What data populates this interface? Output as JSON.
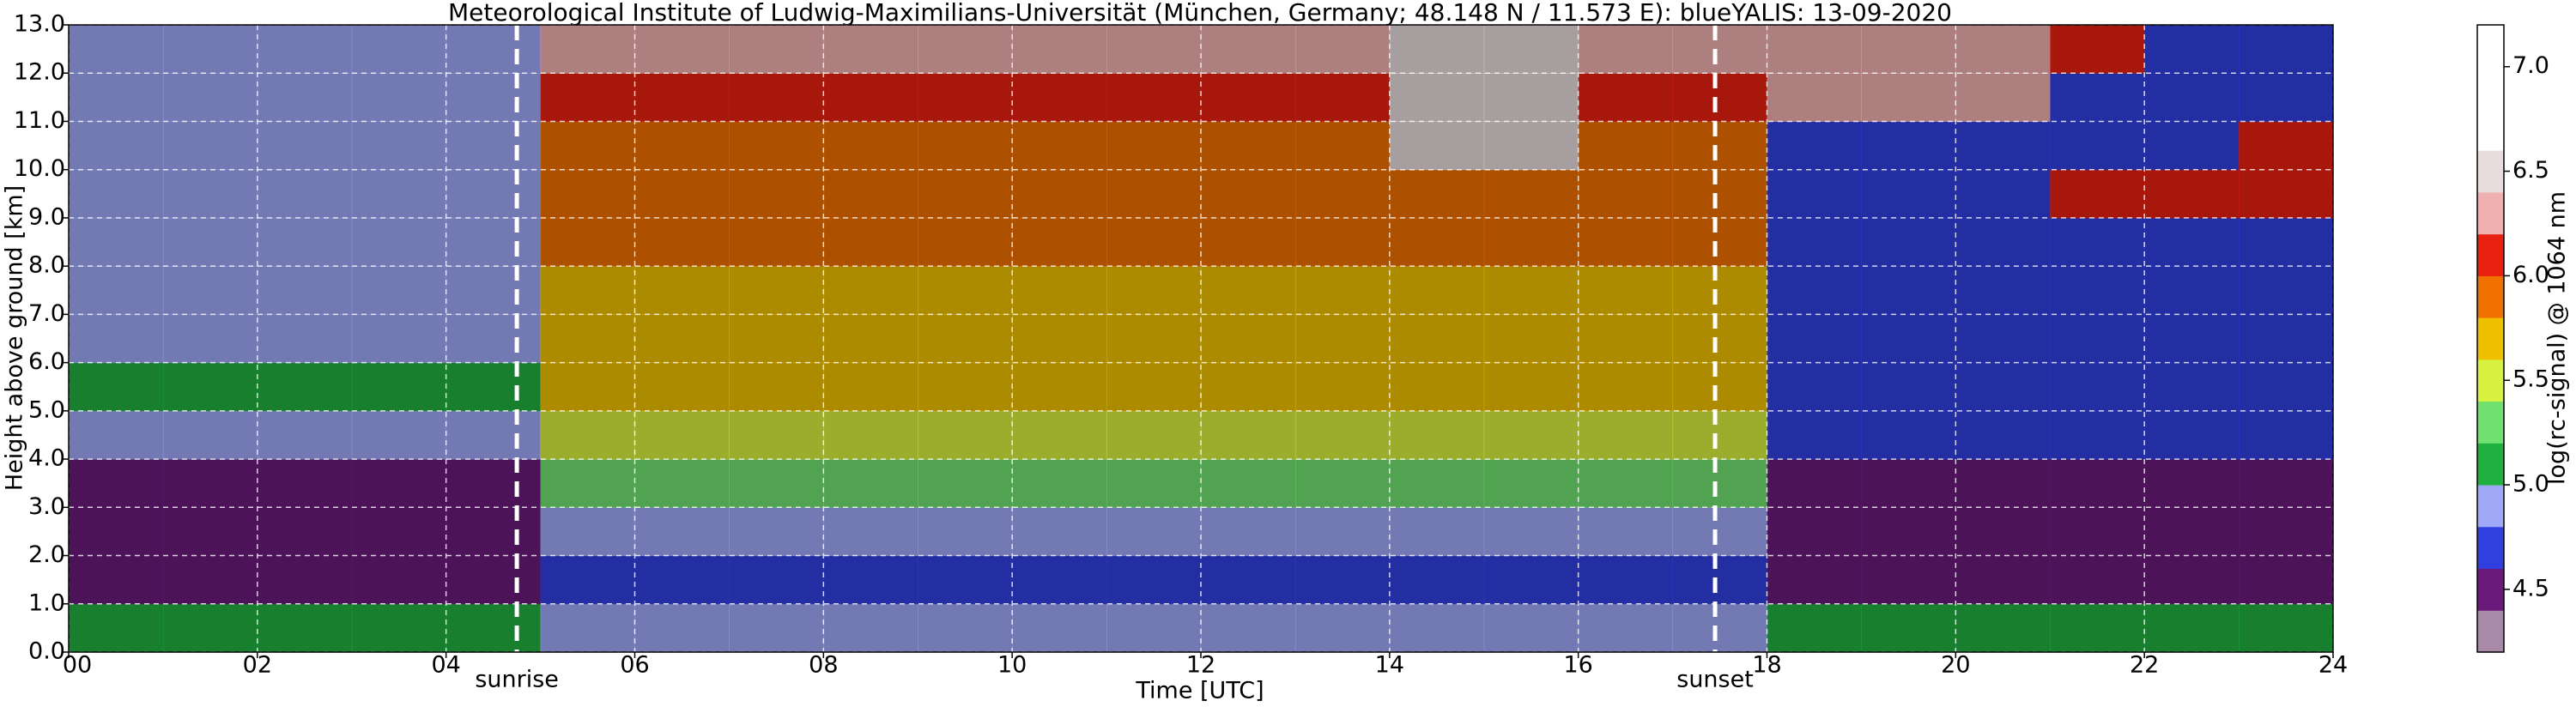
{
  "chart_data": {
    "type": "heatmap",
    "title": "Meteorological Institute of Ludwig-Maximilians-Universität (München, Germany; 48.148 N / 11.573 E):    blueYALIS: 13-09-2020",
    "xlabel": "Time [UTC]",
    "ylabel": "Height above ground [km]",
    "colorbar_label": "log(rc-signal) @ 1064 nm",
    "x_bins": [
      0,
      1,
      2,
      3,
      4,
      5,
      6,
      7,
      8,
      9,
      10,
      11,
      12,
      13,
      14,
      15,
      16,
      17,
      18,
      19,
      20,
      21,
      22,
      23,
      24
    ],
    "y_bins": [
      0,
      1,
      2,
      3,
      4,
      5,
      6,
      7,
      8,
      9,
      10,
      11,
      12,
      13
    ],
    "z": [
      [
        5.1,
        5.1,
        5.1,
        5.1,
        5.1,
        4.9,
        4.9,
        4.9,
        4.9,
        4.9,
        4.9,
        4.9,
        4.9,
        4.9,
        4.9,
        4.9,
        4.9,
        4.9,
        5.1,
        5.1,
        5.1,
        5.1,
        5.1,
        5.1
      ],
      [
        4.6,
        4.6,
        4.6,
        4.6,
        4.6,
        4.7,
        4.7,
        4.7,
        4.7,
        4.7,
        4.7,
        4.7,
        4.7,
        4.7,
        4.7,
        4.7,
        4.7,
        4.7,
        4.6,
        4.6,
        4.6,
        4.6,
        4.6,
        4.6
      ],
      [
        4.5,
        4.5,
        4.5,
        4.5,
        4.5,
        4.9,
        4.9,
        4.9,
        4.9,
        4.9,
        4.9,
        4.9,
        4.9,
        4.9,
        4.9,
        4.9,
        4.9,
        4.9,
        4.6,
        4.6,
        4.6,
        4.6,
        4.6,
        4.6
      ],
      [
        4.6,
        4.6,
        4.6,
        4.6,
        4.6,
        5.3,
        5.3,
        5.3,
        5.3,
        5.3,
        5.3,
        5.3,
        5.3,
        5.3,
        5.3,
        5.3,
        5.3,
        5.3,
        4.6,
        4.6,
        4.6,
        4.6,
        4.6,
        4.6
      ],
      [
        5.0,
        5.0,
        5.0,
        5.0,
        5.0,
        5.5,
        5.5,
        5.5,
        5.5,
        5.5,
        5.5,
        5.5,
        5.5,
        5.5,
        5.5,
        5.5,
        5.5,
        5.5,
        4.7,
        4.7,
        4.7,
        4.7,
        4.7,
        4.7
      ],
      [
        5.1,
        5.1,
        5.1,
        5.1,
        5.1,
        5.7,
        5.7,
        5.7,
        5.7,
        5.7,
        5.7,
        5.7,
        5.7,
        5.7,
        5.7,
        5.7,
        5.7,
        5.7,
        4.8,
        4.8,
        4.8,
        4.8,
        4.8,
        4.8
      ],
      [
        5.0,
        5.0,
        5.0,
        5.0,
        5.0,
        5.7,
        5.7,
        5.7,
        5.7,
        5.7,
        5.7,
        5.7,
        5.7,
        5.7,
        5.7,
        5.7,
        5.7,
        5.7,
        4.8,
        4.8,
        4.8,
        4.8,
        4.8,
        4.8
      ],
      [
        4.9,
        4.9,
        4.9,
        4.9,
        4.9,
        5.7,
        5.7,
        5.7,
        5.7,
        5.7,
        5.7,
        5.7,
        5.7,
        5.7,
        5.7,
        5.7,
        5.7,
        5.7,
        4.8,
        4.8,
        4.8,
        4.8,
        4.8,
        4.8
      ],
      [
        4.9,
        4.9,
        4.9,
        4.9,
        4.9,
        5.9,
        5.9,
        5.9,
        5.9,
        5.9,
        5.9,
        5.9,
        5.9,
        5.9,
        5.9,
        5.9,
        5.9,
        5.9,
        4.8,
        4.8,
        4.8,
        4.8,
        4.8,
        4.8
      ],
      [
        4.9,
        4.9,
        4.9,
        4.9,
        4.9,
        5.9,
        5.9,
        5.9,
        5.9,
        5.9,
        5.9,
        5.9,
        5.9,
        5.9,
        5.9,
        5.9,
        5.9,
        5.9,
        4.8,
        4.8,
        4.8,
        6.0,
        6.0,
        6.1
      ],
      [
        4.9,
        4.9,
        4.9,
        4.9,
        4.9,
        5.9,
        5.9,
        5.9,
        5.9,
        5.9,
        5.9,
        5.9,
        5.9,
        5.9,
        6.5,
        6.5,
        5.9,
        5.9,
        4.8,
        4.8,
        4.8,
        4.8,
        4.8,
        6.1
      ],
      [
        4.9,
        4.9,
        4.9,
        4.9,
        4.9,
        6.0,
        6.0,
        6.0,
        6.0,
        6.0,
        6.0,
        6.0,
        6.0,
        6.0,
        6.5,
        6.5,
        6.0,
        6.0,
        6.2,
        6.2,
        6.2,
        4.8,
        4.8,
        4.8
      ],
      [
        4.9,
        4.9,
        4.9,
        4.9,
        4.9,
        6.2,
        6.2,
        6.2,
        6.2,
        6.2,
        6.2,
        6.2,
        6.2,
        6.2,
        6.5,
        6.5,
        6.2,
        6.2,
        6.2,
        6.2,
        6.2,
        6.0,
        4.8,
        4.8
      ]
    ],
    "xlim": [
      0,
      24
    ],
    "xticks": [
      {
        "value": 0,
        "label": "00"
      },
      {
        "value": 2,
        "label": "02"
      },
      {
        "value": 4,
        "label": "04"
      },
      {
        "value": 6,
        "label": "06"
      },
      {
        "value": 8,
        "label": "08"
      },
      {
        "value": 10,
        "label": "10"
      },
      {
        "value": 12,
        "label": "12"
      },
      {
        "value": 14,
        "label": "14"
      },
      {
        "value": 16,
        "label": "16"
      },
      {
        "value": 18,
        "label": "18"
      },
      {
        "value": 20,
        "label": "20"
      },
      {
        "value": 22,
        "label": "22"
      },
      {
        "value": 24,
        "label": "24"
      }
    ],
    "ylim": [
      0,
      13
    ],
    "yticks": [
      {
        "value": 0,
        "label": "0.0"
      },
      {
        "value": 1,
        "label": "1.0"
      },
      {
        "value": 2,
        "label": "2.0"
      },
      {
        "value": 3,
        "label": "3.0"
      },
      {
        "value": 4,
        "label": "4.0"
      },
      {
        "value": 5,
        "label": "5.0"
      },
      {
        "value": 6,
        "label": "6.0"
      },
      {
        "value": 7,
        "label": "7.0"
      },
      {
        "value": 8,
        "label": "8.0"
      },
      {
        "value": 9,
        "label": "9.0"
      },
      {
        "value": 10,
        "label": "10.0"
      },
      {
        "value": 11,
        "label": "11.0"
      },
      {
        "value": 12,
        "label": "12.0"
      },
      {
        "value": 13,
        "label": "13.0"
      }
    ],
    "clim": [
      4.2,
      7.2
    ],
    "cticks": [
      4.5,
      {
        "value": 5,
        "label": "5.0"
      },
      5.5,
      {
        "value": 6,
        "label": "6.0"
      },
      6.5,
      {
        "value": 7,
        "label": "7.0"
      }
    ],
    "colormap": [
      "#a88aa8",
      "#6a1a7a",
      "#3040e0",
      "#a0a8f8",
      "#20b040",
      "#70e070",
      "#d8f040",
      "#f0c000",
      "#f07000",
      "#e82010",
      "#f0b0b0",
      "#e8dcdc",
      "#ffffff",
      "#ffffff",
      "#ffffff"
    ],
    "grid": true,
    "annotations": [
      {
        "text": "sunrise",
        "x": 4.75
      },
      {
        "text": "sunset",
        "x": 17.45
      }
    ]
  }
}
